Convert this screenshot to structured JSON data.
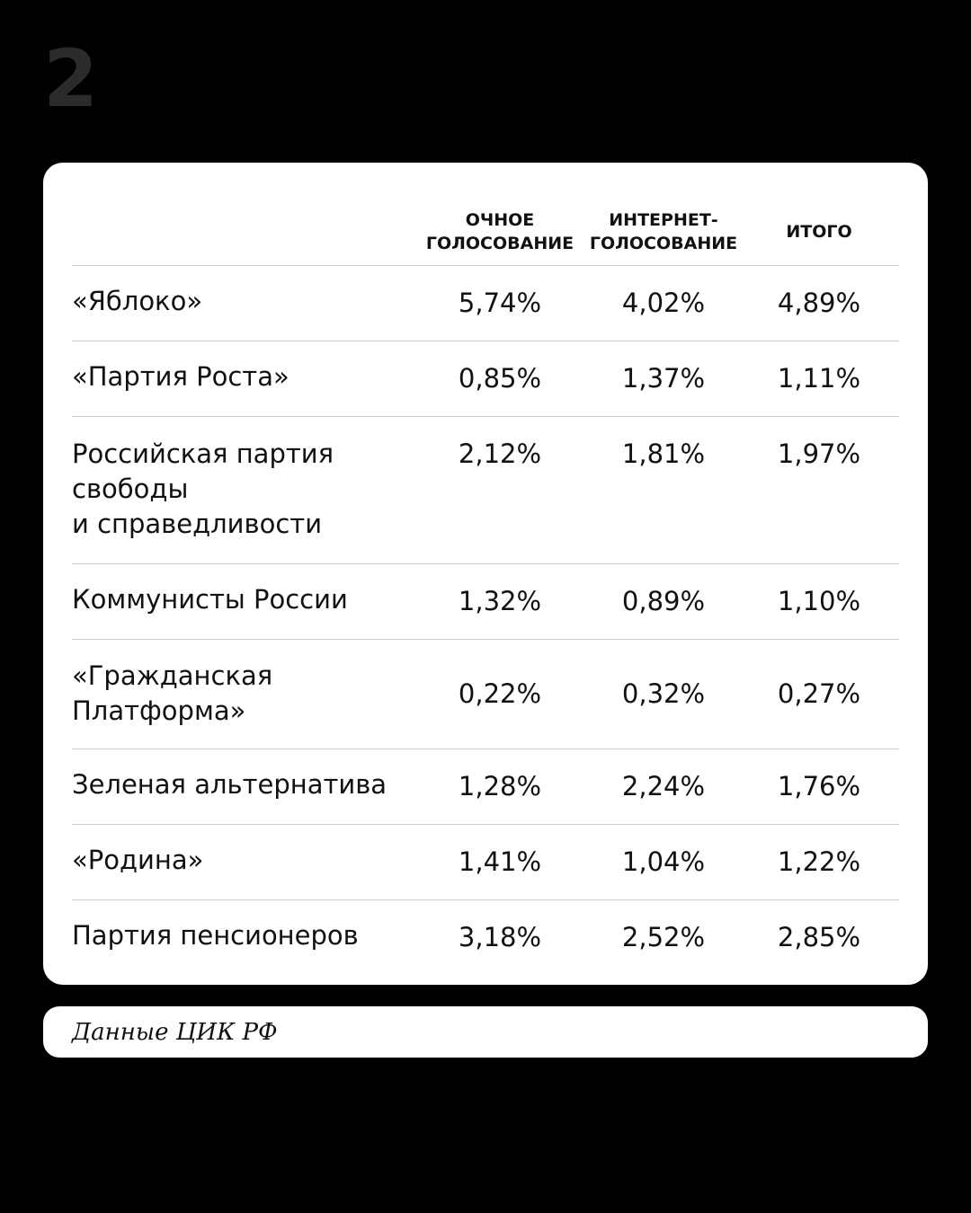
{
  "page_number": "2",
  "columns": [
    "ОЧНОЕ\nГОЛОСОВАНИЕ",
    "ИНТЕРНЕТ-\nГОЛОСОВАНИЕ",
    "ИТОГО"
  ],
  "rows": [
    {
      "party": "«Яблоко»",
      "in_person": "5,74%",
      "internet": "4,02%",
      "total": "4,89%"
    },
    {
      "party": "«Партия Роста»",
      "in_person": "0,85%",
      "internet": "1,37%",
      "total": "1,11%"
    },
    {
      "party": "Российская партия\nсвободы\nи справедливости",
      "in_person": "2,12%",
      "internet": "1,81%",
      "total": "1,97%"
    },
    {
      "party": "Коммунисты России",
      "in_person": "1,32%",
      "internet": "0,89%",
      "total": "1,10%"
    },
    {
      "party": "«Гражданская\nПлатформа»",
      "in_person": "0,22%",
      "internet": "0,32%",
      "total": "0,27%"
    },
    {
      "party": "Зеленая альтернатива",
      "in_person": "1,28%",
      "internet": "2,24%",
      "total": "1,76%"
    },
    {
      "party": "«Родина»",
      "in_person": "1,41%",
      "internet": "1,04%",
      "total": "1,22%"
    },
    {
      "party": "Партия пенсионеров",
      "in_person": "3,18%",
      "internet": "2,52%",
      "total": "2,85%"
    }
  ],
  "source": "Данные ЦИК РФ"
}
